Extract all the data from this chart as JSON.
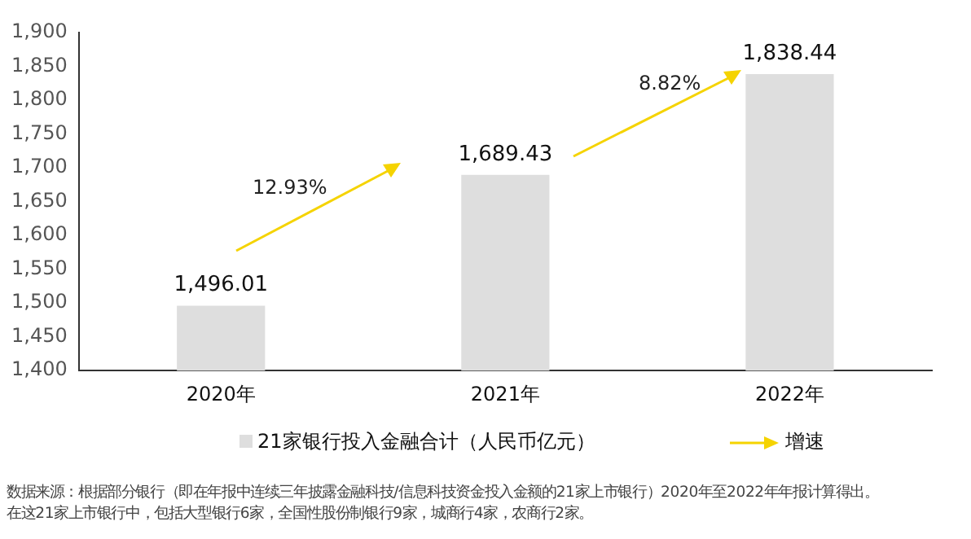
{
  "chart_data": {
    "type": "bar",
    "categories": [
      "2020年",
      "2021年",
      "2022年"
    ],
    "series": [
      {
        "name": "21家银行投入金融合计（人民币亿元）",
        "color": "#dedede",
        "values": [
          1496.01,
          1689.43,
          1838.44
        ]
      }
    ],
    "ylim": [
      1400,
      1900
    ],
    "yticks": [
      {
        "value": 1400,
        "label": "1,400"
      },
      {
        "value": 1450,
        "label": "1,450"
      },
      {
        "value": 1500,
        "label": "1,500"
      },
      {
        "value": 1550,
        "label": "1,550"
      },
      {
        "value": 1600,
        "label": "1,600"
      },
      {
        "value": 1650,
        "label": "1,650"
      },
      {
        "value": 1700,
        "label": "1,700"
      },
      {
        "value": 1750,
        "label": "1,750"
      },
      {
        "value": 1800,
        "label": "1,800"
      },
      {
        "value": 1850,
        "label": "1,850"
      },
      {
        "value": 1900,
        "label": "1,900"
      }
    ],
    "value_labels": [
      "1,496.01",
      "1,689.43",
      "1,838.44"
    ],
    "grid": false,
    "legend": "bottom",
    "annotations": [
      "12.93%",
      "8.82%",
      "增速",
      "数据来源：根据部分银行（即在年报中连续三年披露金融科技/信息科技资金投入金额的21家上市银行）2020年至2022年年报计算得出。",
      "在这21家上市银行中，包括大型银行6家，全国性股份制银行9家，城商行4家，农商行2家。"
    ]
  }
}
